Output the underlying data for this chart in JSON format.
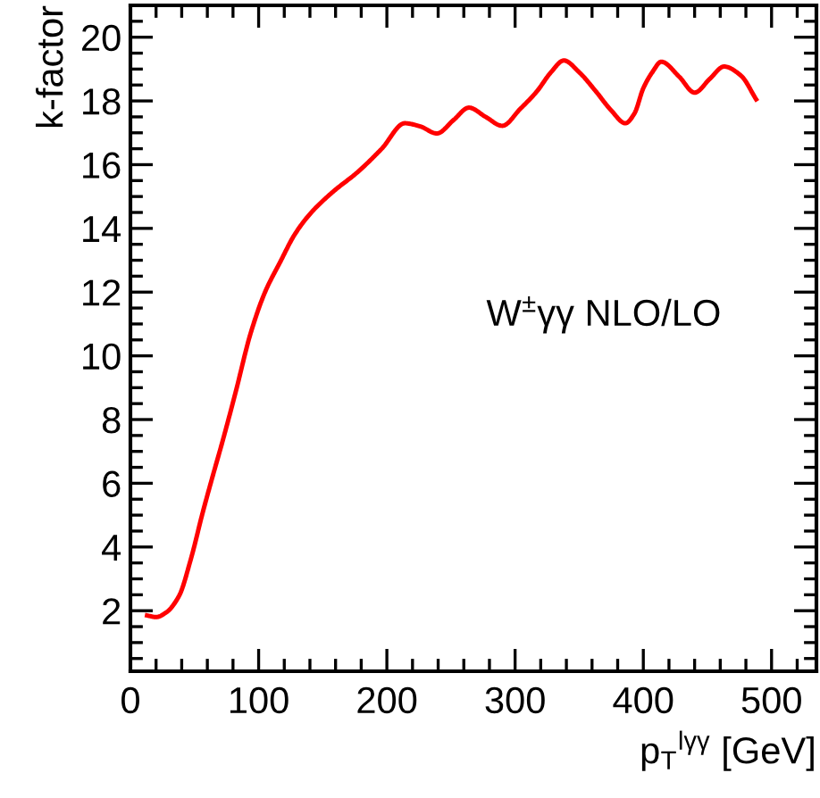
{
  "chart_data": {
    "type": "line",
    "xlabel": "p$_{T}$$^{lγγ}$ [GeV]",
    "ylabel": "k-factor",
    "annotations": [
      "W$^{±}$γγ NLO/LO"
    ],
    "x": [
      13,
      20,
      28,
      38,
      47,
      56.5,
      64,
      72,
      82,
      93.7,
      105,
      117,
      128,
      140,
      158,
      177,
      196,
      214,
      226,
      239,
      252,
      264,
      277,
      290,
      304,
      317,
      328,
      338,
      350,
      363,
      375,
      386,
      393,
      400,
      407,
      414,
      428,
      440,
      452,
      463,
      476,
      488
    ],
    "series": [
      {
        "color": "#ff0000",
        "values": [
          1.85,
          1.8,
          1.95,
          2.47,
          3.6,
          5.1,
          6.2,
          7.34,
          8.85,
          10.7,
          12.0,
          12.96,
          13.8,
          14.45,
          15.15,
          15.76,
          16.5,
          17.3,
          17.2,
          16.98,
          17.4,
          17.79,
          17.5,
          17.22,
          17.75,
          18.3,
          18.9,
          19.27,
          18.9,
          18.3,
          17.7,
          17.3,
          17.6,
          18.4,
          18.9,
          19.23,
          18.76,
          18.26,
          18.7,
          19.08,
          18.8,
          18.05
        ]
      }
    ],
    "xlim": [
      0,
      535
    ],
    "ylim": [
      0.1,
      21
    ],
    "xticks": [
      0,
      100,
      200,
      300,
      400,
      500
    ],
    "yticks": [
      2,
      4,
      6,
      8,
      10,
      12,
      14,
      16,
      18,
      20
    ],
    "grid": false,
    "legend": false,
    "marker": "none",
    "line_style": "solid"
  }
}
